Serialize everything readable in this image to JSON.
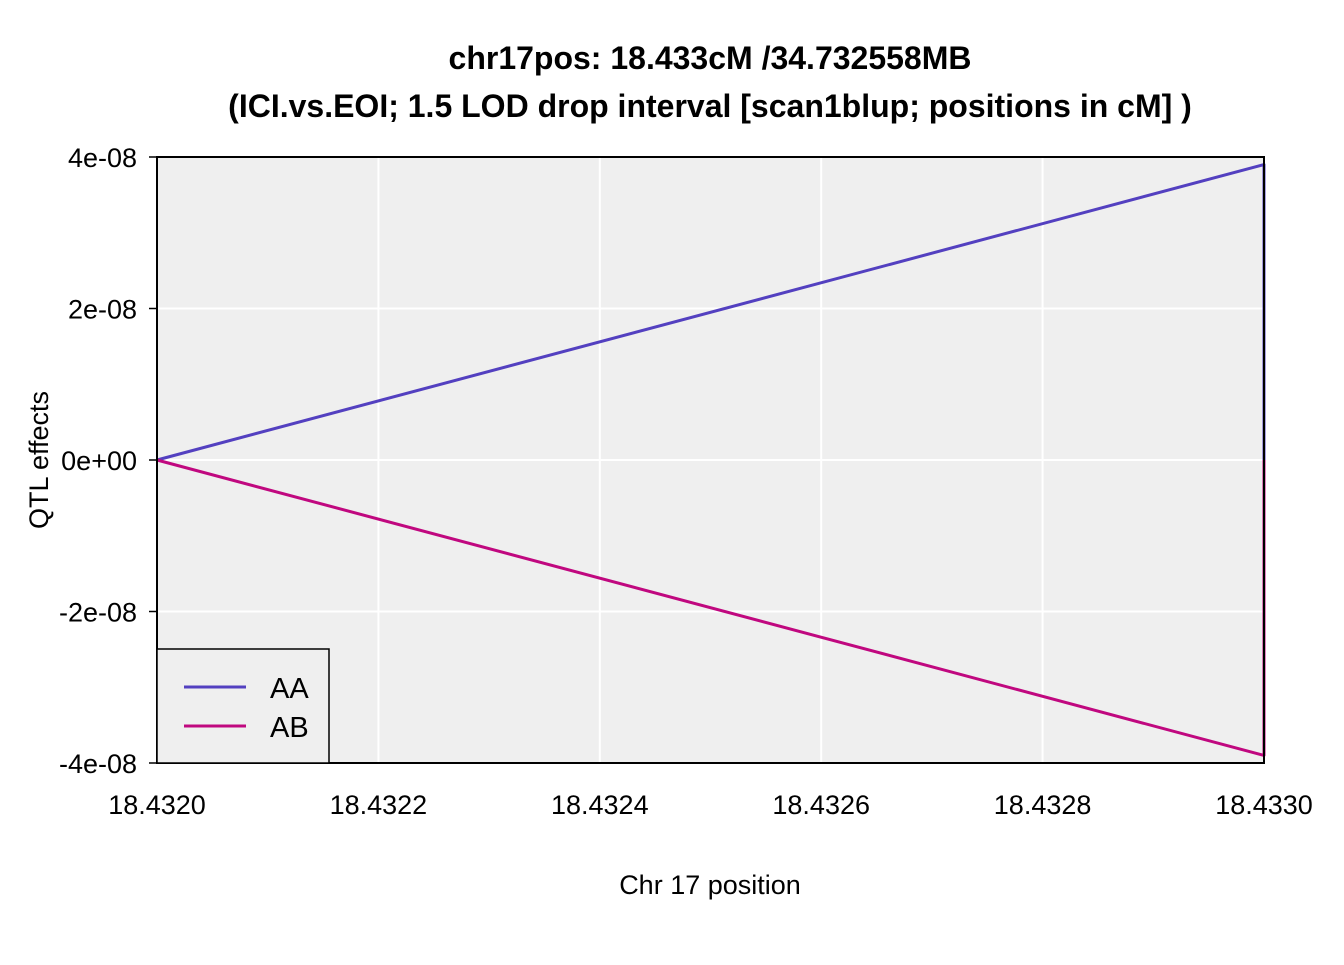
{
  "chart_data": {
    "type": "line",
    "title": "chr17pos: 18.433cM /34.732558MB",
    "subtitle": "(ICI.vs.EOI; 1.5 LOD drop interval [scan1blup; positions in cM] )",
    "xlabel": "Chr 17 position",
    "ylabel": "QTL effects",
    "xlim": [
      18.432,
      18.433
    ],
    "ylim": [
      -4e-08,
      4e-08
    ],
    "x_ticks": [
      "18.4320",
      "18.4322",
      "18.4324",
      "18.4326",
      "18.4328",
      "18.4330"
    ],
    "x_tick_values": [
      18.432,
      18.4322,
      18.4324,
      18.4326,
      18.4328,
      18.433
    ],
    "y_ticks": [
      "4e-08",
      "2e-08",
      "0e+00",
      "-2e-08",
      "-4e-08"
    ],
    "y_tick_values": [
      4e-08,
      2e-08,
      0,
      -2e-08,
      -4e-08
    ],
    "grid": true,
    "legend_position": "bottom-left",
    "series": [
      {
        "name": "AA",
        "color": "#5340c0",
        "points": [
          [
            18.432,
            0
          ],
          [
            18.433,
            3.9e-08
          ],
          [
            18.433,
            0
          ]
        ]
      },
      {
        "name": "AB",
        "color": "#c0087f",
        "points": [
          [
            18.432,
            0
          ],
          [
            18.433,
            -3.9e-08
          ],
          [
            18.433,
            0
          ]
        ]
      }
    ]
  },
  "colors": {
    "plot_background": "#efefef",
    "grid": "#ffffff"
  }
}
